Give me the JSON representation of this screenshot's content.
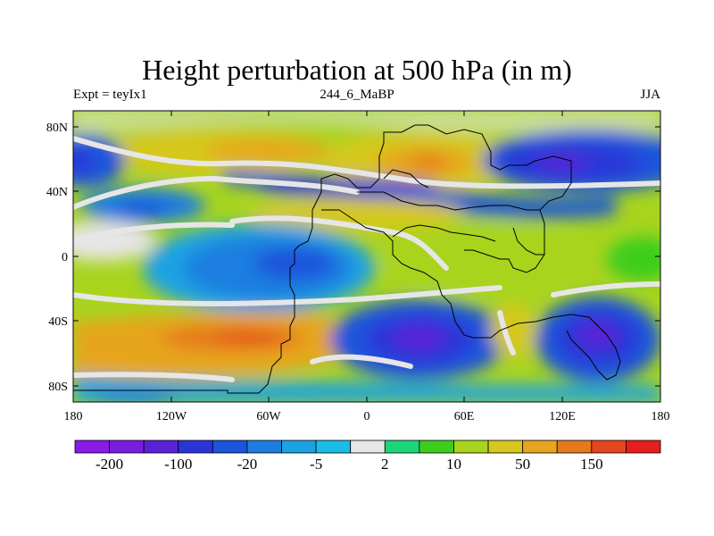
{
  "title": "Height perturbation at 500 hPa (in m)",
  "subtitle_left": "Expt = teyIx1",
  "subtitle_center": "244_6_MaBP",
  "subtitle_right": "JJA",
  "lat_ticks": [
    "80N",
    "40N",
    "0",
    "40S",
    "80S"
  ],
  "lon_ticks": [
    "180",
    "120W",
    "60W",
    "0",
    "60E",
    "120E",
    "180"
  ],
  "colorbar": {
    "colors": [
      "#8a1be6",
      "#7a1de0",
      "#5a22d6",
      "#2a35d8",
      "#1a55dc",
      "#1e7ee0",
      "#1ba2e3",
      "#19bde6",
      "#e6e6e6",
      "#1ed67a",
      "#3ccd1e",
      "#a8d41e",
      "#d6c81e",
      "#e6a51e",
      "#e6781e",
      "#e6461e",
      "#e61e1e"
    ],
    "labels": [
      "-200",
      "-100",
      "-20",
      "-5",
      "2",
      "10",
      "50",
      "150"
    ]
  }
}
